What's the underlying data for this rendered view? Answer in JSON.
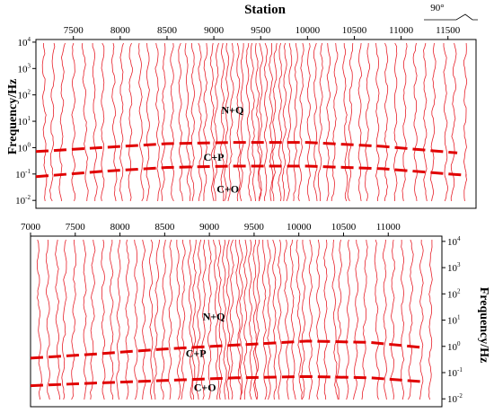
{
  "chart_data": {
    "type": "line",
    "station_title": "Station",
    "ylabel": "Frequency/Hz",
    "y_scale": "log",
    "azimuth_label": "90°",
    "colors": {
      "trace": "#e8202a",
      "boundary": "#e00000",
      "axis": "#000000"
    },
    "panels": [
      {
        "id": "top",
        "x_ticks": [
          7500,
          8000,
          8500,
          9000,
          9500,
          10000,
          10500,
          11000,
          11500
        ],
        "xlim": [
          7100,
          11800
        ],
        "ylim_exp": [
          -2.3,
          4.1
        ],
        "y_tick_exponents": [
          -2,
          -1,
          0,
          1,
          2,
          3,
          4
        ],
        "y_tick_labels": [
          "10",
          "10",
          "10",
          "10",
          "10",
          "10",
          "10"
        ],
        "y_tick_sup": [
          "-2",
          "-1",
          "0",
          "1",
          "2",
          "3",
          "4"
        ],
        "y_axis_side": "left",
        "x_axis_side": "top",
        "zones": [
          {
            "label": "N+Q",
            "x": 9200,
            "y_exp": 1.3
          },
          {
            "label": "C+P",
            "x": 9000,
            "y_exp": -0.5
          },
          {
            "label": "C+O",
            "x": 9150,
            "y_exp": -1.7
          }
        ],
        "boundaries": [
          {
            "name": "N+Q / C+P",
            "x": [
              7100,
              7800,
              8500,
              9200,
              10000,
              10800,
              11600
            ],
            "y_exp": [
              -0.15,
              0.0,
              0.15,
              0.2,
              0.2,
              0.05,
              -0.2
            ]
          },
          {
            "name": "C+P / C+O",
            "x": [
              7100,
              7800,
              8500,
              9200,
              10000,
              10800,
              11700
            ],
            "y_exp": [
              -1.1,
              -0.9,
              -0.75,
              -0.7,
              -0.7,
              -0.8,
              -1.05
            ]
          }
        ],
        "trace_count": 58
      },
      {
        "id": "bottom",
        "x_ticks": [
          7000,
          7500,
          8000,
          8500,
          9000,
          9500,
          10000,
          10500,
          11000
        ],
        "xlim": [
          7000,
          11600
        ],
        "ylim_exp": [
          -2.3,
          4.2
        ],
        "y_tick_exponents": [
          -2,
          -1,
          0,
          1,
          2,
          3,
          4
        ],
        "y_tick_labels": [
          "10",
          "10",
          "10",
          "10",
          "10",
          "10",
          "10"
        ],
        "y_tick_sup": [
          "-2",
          "-1",
          "0",
          "1",
          "2",
          "3",
          "4"
        ],
        "y_axis_side": "right",
        "x_axis_side": "top",
        "zones": [
          {
            "label": "N+Q",
            "x": 9050,
            "y_exp": 1.0
          },
          {
            "label": "C+P",
            "x": 8850,
            "y_exp": -0.4
          },
          {
            "label": "C+O",
            "x": 8950,
            "y_exp": -1.7
          }
        ],
        "boundaries": [
          {
            "name": "N+Q / C+P",
            "x": [
              7000,
              7700,
              8500,
              9300,
              10100,
              10800,
              11400
            ],
            "y_exp": [
              -0.45,
              -0.3,
              -0.1,
              0.05,
              0.2,
              0.15,
              -0.05
            ]
          },
          {
            "name": "C+P / C+O",
            "x": [
              7000,
              7700,
              8500,
              9300,
              10100,
              10800,
              11400
            ],
            "y_exp": [
              -1.5,
              -1.4,
              -1.3,
              -1.2,
              -1.15,
              -1.2,
              -1.35
            ]
          }
        ],
        "trace_count": 58
      }
    ]
  }
}
